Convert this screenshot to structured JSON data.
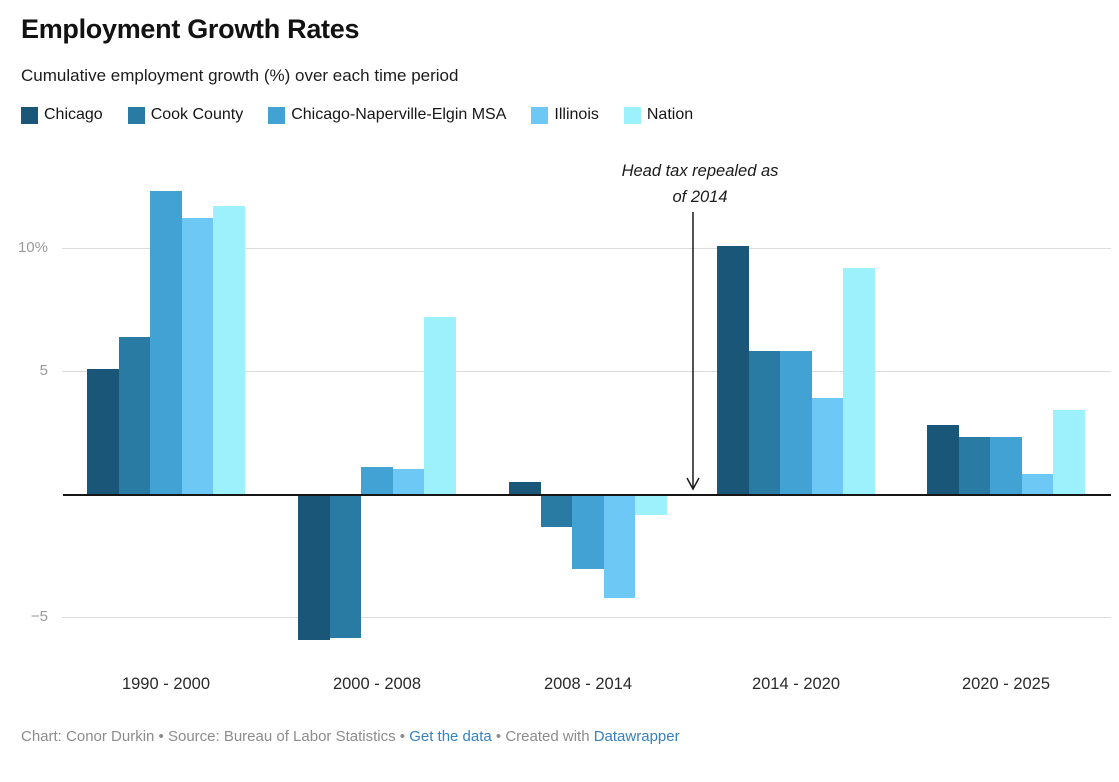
{
  "header": {
    "title": "Employment Growth Rates",
    "subtitle": "Cumulative employment growth (%) over each time period"
  },
  "annotation": {
    "line1": "Head tax repealed as",
    "line2": "of 2014"
  },
  "chart_data": {
    "type": "bar",
    "title": "Employment Growth Rates",
    "subtitle": "Cumulative employment growth (%) over each time period",
    "categories": [
      "1990 - 2000",
      "2000 - 2008",
      "2008 - 2014",
      "2014 - 2020",
      "2020 - 2025"
    ],
    "series": [
      {
        "name": "Chicago",
        "color": "#1A5678",
        "values": [
          5.1,
          -5.9,
          0.5,
          10.1,
          2.8
        ]
      },
      {
        "name": "Cook County",
        "color": "#2A7BA4",
        "values": [
          6.4,
          -5.8,
          -1.3,
          5.8,
          2.3
        ]
      },
      {
        "name": "Chicago-Naperville-Elgin MSA",
        "color": "#41A2D3",
        "values": [
          12.3,
          1.1,
          -3.0,
          5.8,
          2.3
        ]
      },
      {
        "name": "Illinois",
        "color": "#6EC8F6",
        "values": [
          11.2,
          1.0,
          -4.2,
          3.9,
          0.8
        ]
      },
      {
        "name": "Nation",
        "color": "#9DF1FC",
        "values": [
          11.7,
          7.2,
          -0.8,
          9.2,
          3.4
        ]
      }
    ],
    "xlabel": "",
    "ylabel": "",
    "yticks": [
      {
        "value": 10,
        "label": "10%"
      },
      {
        "value": 5,
        "label": "5"
      },
      {
        "value": -5,
        "label": "−5"
      }
    ],
    "ylim": [
      -6.9,
      14
    ],
    "grid": true,
    "legend_position": "top",
    "annotation": {
      "text": "Head tax repealed as of 2014",
      "arrow_target": "zero line between 2008 - 2014 and 2014 - 2020"
    }
  },
  "footer": {
    "segments": [
      {
        "text": "Chart: Conor Durkin • Source: Bureau of Labor Statistics • ",
        "link": false
      },
      {
        "text": "Get the data",
        "link": true
      },
      {
        "text": " • Created with ",
        "link": false
      },
      {
        "text": "Datawrapper",
        "link": true
      }
    ]
  },
  "colors": {
    "grid": "#DDDDDD",
    "zero_line": "#161616",
    "tick_label": "#9A9A9A",
    "footer_text": "#8C8C8C",
    "link": "#3581C2"
  }
}
